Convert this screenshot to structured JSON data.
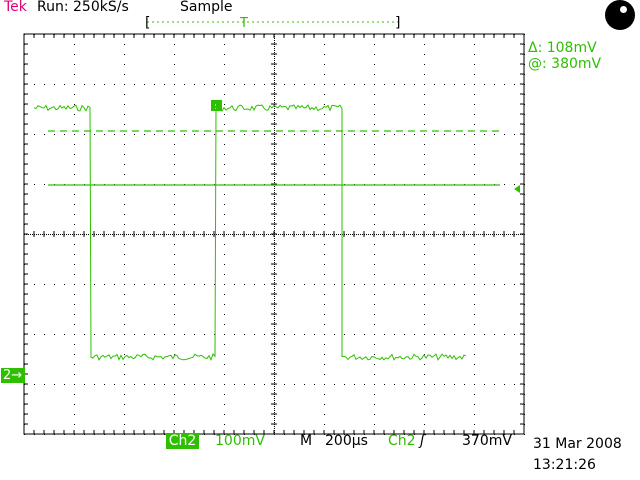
{
  "header": {
    "brand": "Tek",
    "run_status": "Run: 250kS/s",
    "acquisition_mode": "Sample"
  },
  "measurements": {
    "delta": "Δ: 108mV",
    "at": "@: 380mV"
  },
  "footer": {
    "channel": "Ch2",
    "vertical_scale": "100mV",
    "timebase_label": "M",
    "timebase": "200µs",
    "trigger_channel": "Ch2",
    "trigger_slope": "ʃ",
    "trigger_level": "370mV",
    "date": "31 Mar 2008",
    "time": "13:21:26"
  },
  "trigger_marker": "T",
  "ch2_marker": "2→",
  "colors": {
    "trace": "#2ec000",
    "brand": "#e0007a",
    "grid": "#000000",
    "background": "#ffffff"
  },
  "icons": {
    "run-status": "black-circle-icon",
    "ch2-ground": "arrow-right-icon",
    "trigger-level": "triangle-left-icon"
  }
}
